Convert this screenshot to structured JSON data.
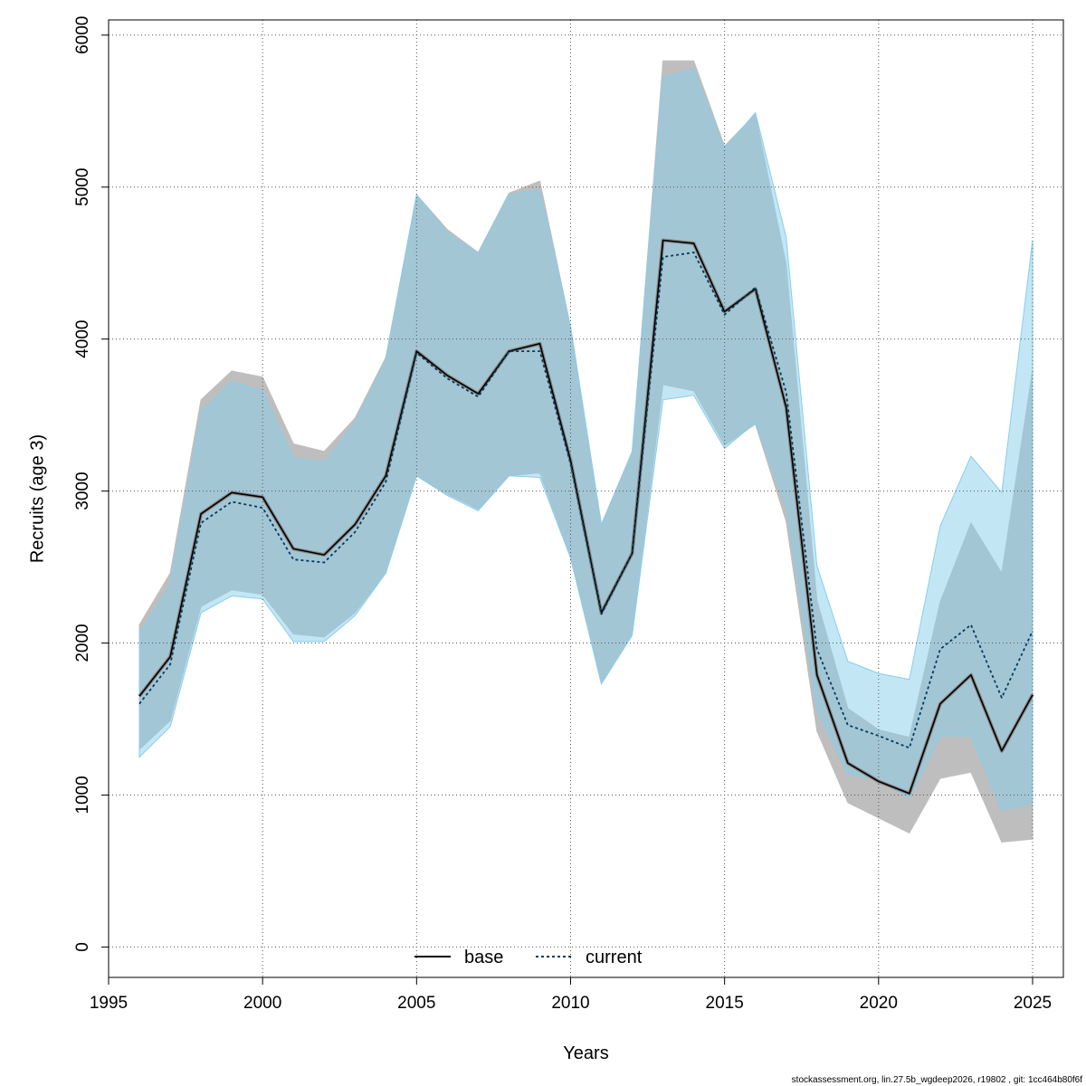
{
  "chart_data": {
    "type": "line",
    "xlabel": "Years",
    "ylabel": "Recruits (age 3)",
    "xlim": [
      1995,
      2026
    ],
    "ylim": [
      -200,
      6100
    ],
    "x_ticks": [
      1995,
      2000,
      2005,
      2010,
      2015,
      2020,
      2025
    ],
    "y_ticks": [
      0,
      1000,
      2000,
      3000,
      4000,
      5000,
      6000
    ],
    "grid": true,
    "legend_position": "bottom",
    "x": [
      1996,
      1997,
      1998,
      1999,
      2000,
      2001,
      2002,
      2003,
      2004,
      2005,
      2006,
      2007,
      2008,
      2009,
      2010,
      2011,
      2012,
      2013,
      2014,
      2015,
      2016,
      2017,
      2018,
      2019,
      2020,
      2021,
      2022,
      2023,
      2024,
      2025
    ],
    "series": [
      {
        "name": "base",
        "line_style": "solid",
        "color": "#000000",
        "band_color": "#bebebe",
        "values": [
          1650,
          1910,
          2850,
          2990,
          2960,
          2620,
          2580,
          2780,
          3100,
          3920,
          3760,
          3640,
          3920,
          3970,
          3200,
          2200,
          2590,
          4650,
          4630,
          4180,
          4330,
          3550,
          1790,
          1210,
          1090,
          1010,
          1600,
          1790,
          1290,
          1660
        ],
        "lower": [
          1300,
          1490,
          2240,
          2350,
          2320,
          2060,
          2040,
          2200,
          2460,
          3100,
          2980,
          2880,
          3100,
          3120,
          2560,
          1740,
          2060,
          3700,
          3660,
          3300,
          3440,
          2800,
          1420,
          950,
          850,
          750,
          1110,
          1150,
          690,
          710
        ],
        "upper": [
          2120,
          2460,
          3600,
          3790,
          3750,
          3310,
          3260,
          3480,
          3880,
          4950,
          4720,
          4570,
          4960,
          5040,
          4080,
          2780,
          3260,
          5830,
          5830,
          5270,
          5480,
          4490,
          2280,
          1570,
          1430,
          1380,
          2270,
          2790,
          2460,
          3800
        ]
      },
      {
        "name": "current",
        "line_style": "dotted",
        "color": "#003b5c",
        "band_color": "#87ceeb",
        "values": [
          1600,
          1860,
          2790,
          2930,
          2890,
          2550,
          2530,
          2730,
          3060,
          3910,
          3740,
          3620,
          3920,
          3920,
          3180,
          2190,
          2590,
          4540,
          4570,
          4160,
          4340,
          3650,
          1960,
          1460,
          1390,
          1310,
          1960,
          2120,
          1640,
          2080
        ],
        "lower": [
          1250,
          1450,
          2200,
          2310,
          2290,
          2010,
          2010,
          2180,
          2460,
          3100,
          2970,
          2870,
          3100,
          3090,
          2560,
          1730,
          2050,
          3600,
          3630,
          3280,
          3450,
          2900,
          1560,
          1140,
          1100,
          980,
          1390,
          1390,
          900,
          950
        ],
        "upper": [
          2060,
          2380,
          3520,
          3720,
          3660,
          3220,
          3190,
          3450,
          3860,
          4950,
          4700,
          4560,
          4950,
          4980,
          4080,
          2780,
          3250,
          5720,
          5780,
          5250,
          5490,
          4670,
          2510,
          1880,
          1800,
          1760,
          2770,
          3230,
          2990,
          4650
        ]
      }
    ],
    "footer": "stockassessment.org, lin.27.5b_wgdeep2026, r19802 , git: 1cc464b80f6f"
  }
}
